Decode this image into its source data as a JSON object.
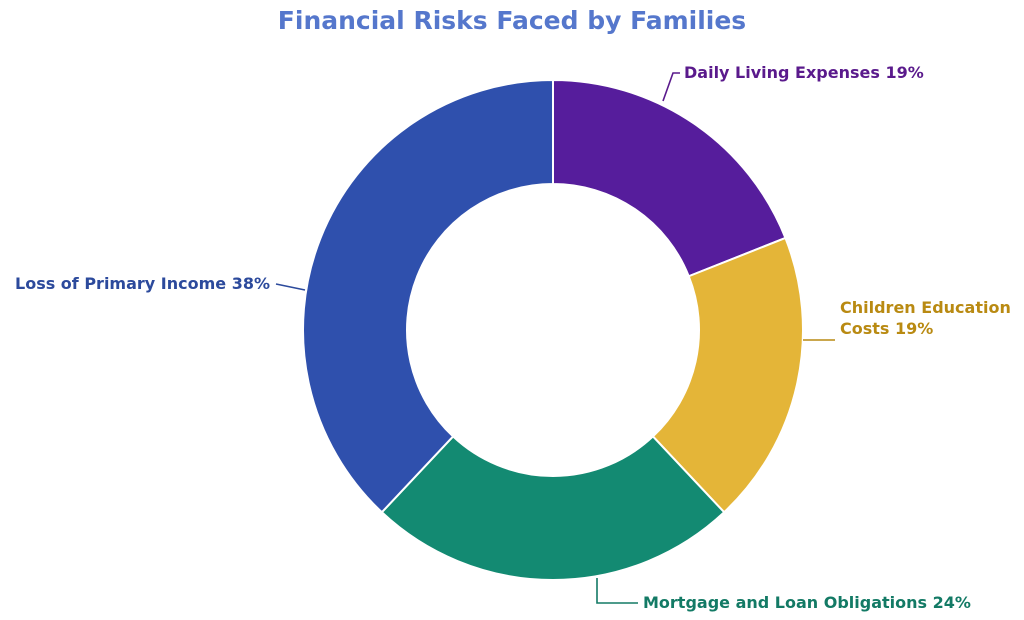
{
  "chart_data": {
    "type": "pie",
    "title": "Financial Risks Faced by Families",
    "slices": [
      {
        "label": "Daily Living Expenses",
        "value": 19,
        "display": "19%",
        "color": "#561d9c",
        "label_lines": [
          "Daily Living Expenses  19%"
        ]
      },
      {
        "label": "Children Education Costs",
        "value": 19,
        "display": "19%",
        "color": "#e4b538",
        "label_lines": [
          "Children Education",
          "Costs  19%"
        ]
      },
      {
        "label": "Mortgage and Loan Obligations",
        "value": 24,
        "display": "24%",
        "color": "#138a72",
        "label_lines": [
          "Mortgage and Loan Obligations  24%"
        ]
      },
      {
        "label": "Loss of Primary Income",
        "value": 38,
        "display": "38%",
        "color": "#2f50ad",
        "label_lines": [
          "Loss of Primary Income  38%"
        ]
      }
    ],
    "donut": true,
    "legend": "none",
    "label_colors": [
      "#5a1a8c",
      "#b98a12",
      "#137a65",
      "#2c4a9c"
    ],
    "title_color": "#5577cc"
  }
}
